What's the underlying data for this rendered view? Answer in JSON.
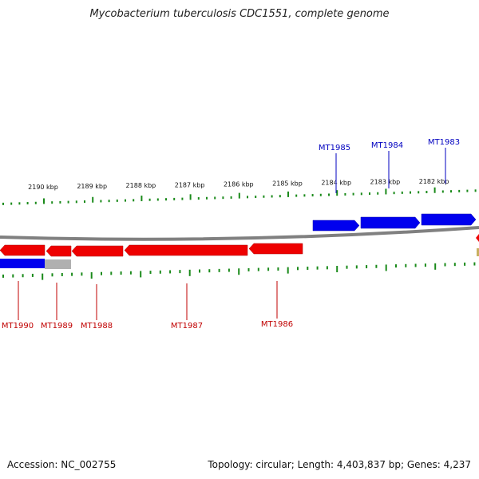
{
  "title": "Mycobacterium tuberculosis CDC1551, complete genome",
  "footer": {
    "accession": "Accession: NC_002755",
    "summary": "Topology: circular; Length: 4,403,837 bp; Genes: 4,237"
  },
  "colors": {
    "forward_gene": "#0000ee",
    "reverse_gene": "#ee0000",
    "backbone": "#808080",
    "tick": "#1a8a1a",
    "label_forward": "#0000c0",
    "label_reverse": "#c00000",
    "partial_gene": "#b0b0b0"
  },
  "scale_labels": [
    {
      "kbp": 2190,
      "text": "2190 kbp"
    },
    {
      "kbp": 2189,
      "text": "2189 kbp"
    },
    {
      "kbp": 2188,
      "text": "2188 kbp"
    },
    {
      "kbp": 2187,
      "text": "2187 kbp"
    },
    {
      "kbp": 2186,
      "text": "2186 kbp"
    },
    {
      "kbp": 2185,
      "text": "2185 kbp"
    },
    {
      "kbp": 2184,
      "text": "2184 kbp"
    },
    {
      "kbp": 2183,
      "text": "2183 kbp"
    },
    {
      "kbp": 2182,
      "text": "2182 kbp"
    }
  ],
  "forward_genes": [
    {
      "name": "MT1985"
    },
    {
      "name": "MT1984"
    },
    {
      "name": "MT1983"
    }
  ],
  "reverse_genes": [
    {
      "name": "MT1990"
    },
    {
      "name": "MT1989"
    },
    {
      "name": "MT1988"
    },
    {
      "name": "MT1987"
    },
    {
      "name": "MT1986"
    }
  ]
}
